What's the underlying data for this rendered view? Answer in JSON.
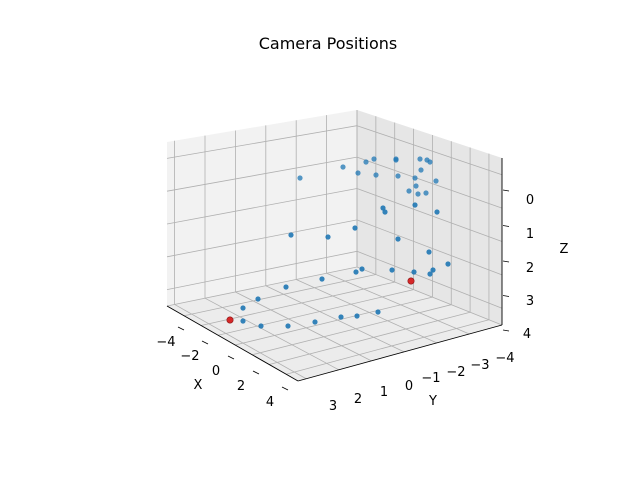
{
  "chart_data": {
    "type": "scatter",
    "projection": "3d",
    "title": "Camera Positions",
    "xlabel": "X",
    "ylabel": "Y",
    "zlabel": "Z",
    "x_ticks": [
      "−4",
      "−2",
      "0",
      "2",
      "4"
    ],
    "y_ticks": [
      "3",
      "2",
      "1",
      "0",
      "−1",
      "−2",
      "−3",
      "−4"
    ],
    "z_ticks": [
      "0",
      "1",
      "2",
      "3",
      "4"
    ],
    "grid": true,
    "marker_color": "#1f77b4",
    "highlight_color": "#d62728",
    "highlight_points": 2
  }
}
